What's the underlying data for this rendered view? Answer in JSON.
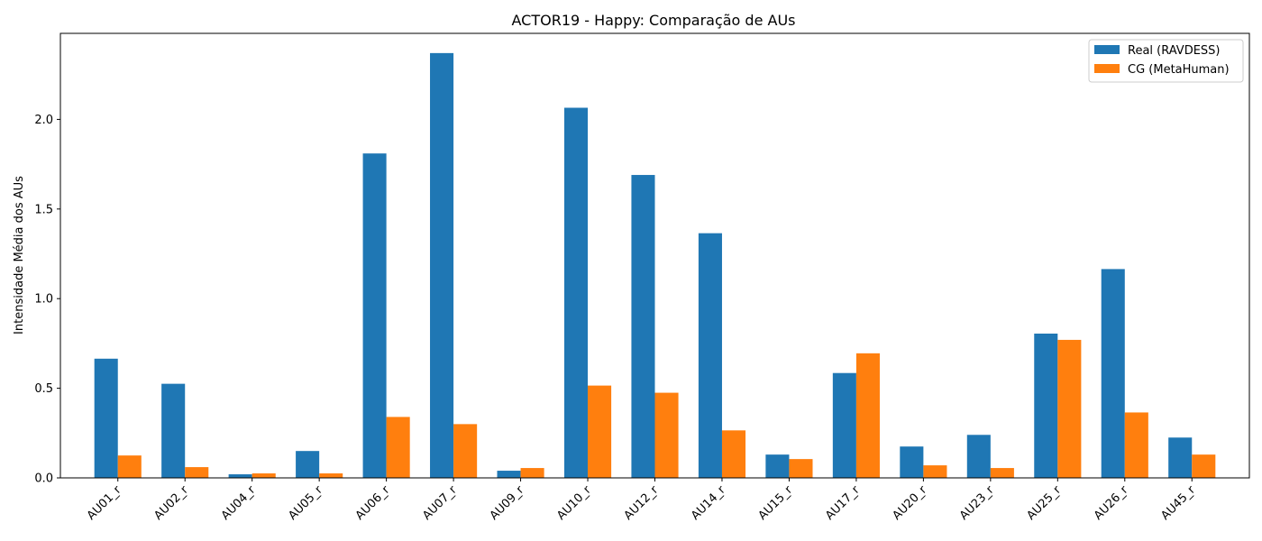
{
  "chart_data": {
    "type": "bar",
    "title": "ACTOR19 - Happy: Comparação de AUs",
    "xlabel": "",
    "ylabel": "Intensidade Média dos AUs",
    "ylim": [
      0,
      2.48
    ],
    "yticks": [
      "0.0",
      "0.5",
      "1.0",
      "1.5",
      "2.0"
    ],
    "ytick_values": [
      0,
      0.5,
      1.0,
      1.5,
      2.0
    ],
    "categories": [
      "AU01_r",
      "AU02_r",
      "AU04_r",
      "AU05_r",
      "AU06_r",
      "AU07_r",
      "AU09_r",
      "AU10_r",
      "AU12_r",
      "AU14_r",
      "AU15_r",
      "AU17_r",
      "AU20_r",
      "AU23_r",
      "AU25_r",
      "AU26_r",
      "AU45_r"
    ],
    "series": [
      {
        "name": "Real (RAVDESS)",
        "color": "#1f77b4",
        "values": [
          0.665,
          0.525,
          0.02,
          0.15,
          1.81,
          2.37,
          0.04,
          2.065,
          1.69,
          1.365,
          0.13,
          0.585,
          0.175,
          0.24,
          0.805,
          1.165,
          0.225
        ]
      },
      {
        "name": "CG (MetaHuman)",
        "color": "#ff7f0e",
        "values": [
          0.125,
          0.06,
          0.025,
          0.025,
          0.34,
          0.3,
          0.055,
          0.515,
          0.475,
          0.265,
          0.105,
          0.695,
          0.07,
          0.055,
          0.77,
          0.365,
          0.13
        ]
      }
    ],
    "legend_position": "top-right",
    "grid": false
  }
}
